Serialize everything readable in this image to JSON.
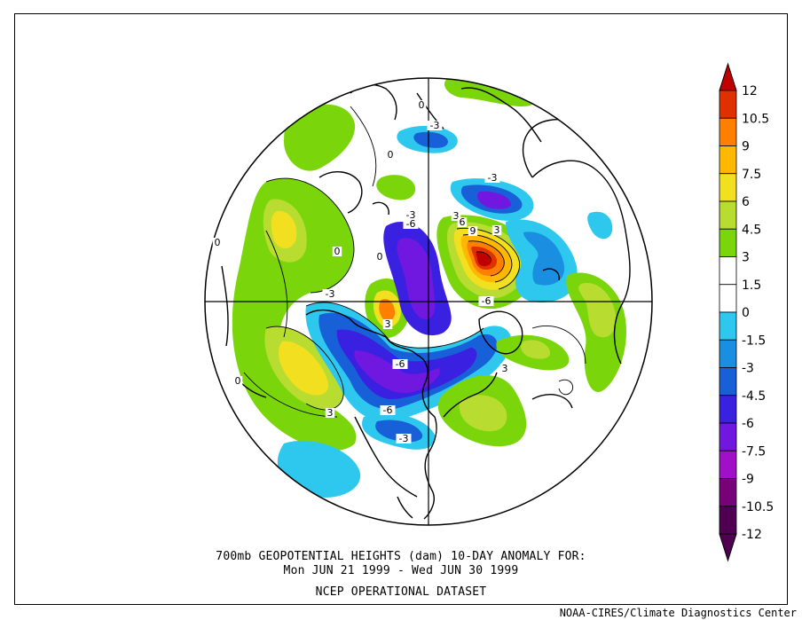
{
  "title_line1": "700mb GEOPOTENTIAL HEIGHTS (dam)   10-DAY ANOMALY FOR:",
  "title_line2": "Mon JUN 21 1999 - Wed JUN 30 1999",
  "dataset": "NCEP OPERATIONAL DATASET",
  "credit": "NOAA-CIRES/Climate Diagnostics Center",
  "colorbar": {
    "levels": [
      {
        "label": "12",
        "color": "#c00000"
      },
      {
        "label": "10.5",
        "color": "#e03000"
      },
      {
        "label": "9",
        "color": "#ff8000"
      },
      {
        "label": "7.5",
        "color": "#ffb800"
      },
      {
        "label": "6",
        "color": "#f2e020"
      },
      {
        "label": "4.5",
        "color": "#b8dc30"
      },
      {
        "label": "3",
        "color": "#7ad60a"
      },
      {
        "label": "1.5",
        "color": "#ffffff"
      },
      {
        "label": "0",
        "color": "#ffffff"
      },
      {
        "label": "-1.5",
        "color": "#2ec8ee"
      },
      {
        "label": "-3",
        "color": "#1a8ee0"
      },
      {
        "label": "-4.5",
        "color": "#1860d8"
      },
      {
        "label": "-6",
        "color": "#3a20e0"
      },
      {
        "label": "-7.5",
        "color": "#7018e0"
      },
      {
        "label": "-9",
        "color": "#a010c8"
      },
      {
        "label": "-10.5",
        "color": "#780078"
      },
      {
        "label": "-12",
        "color": "#500050"
      }
    ]
  },
  "contour_labels": [
    "0",
    "0",
    "0",
    "0",
    "0",
    "0",
    "-3",
    "-3",
    "-3",
    "3",
    "6",
    "9",
    "-6",
    "3",
    "-3",
    "-6",
    "-6",
    "3",
    "-6",
    "-3",
    "3",
    "3"
  ]
}
